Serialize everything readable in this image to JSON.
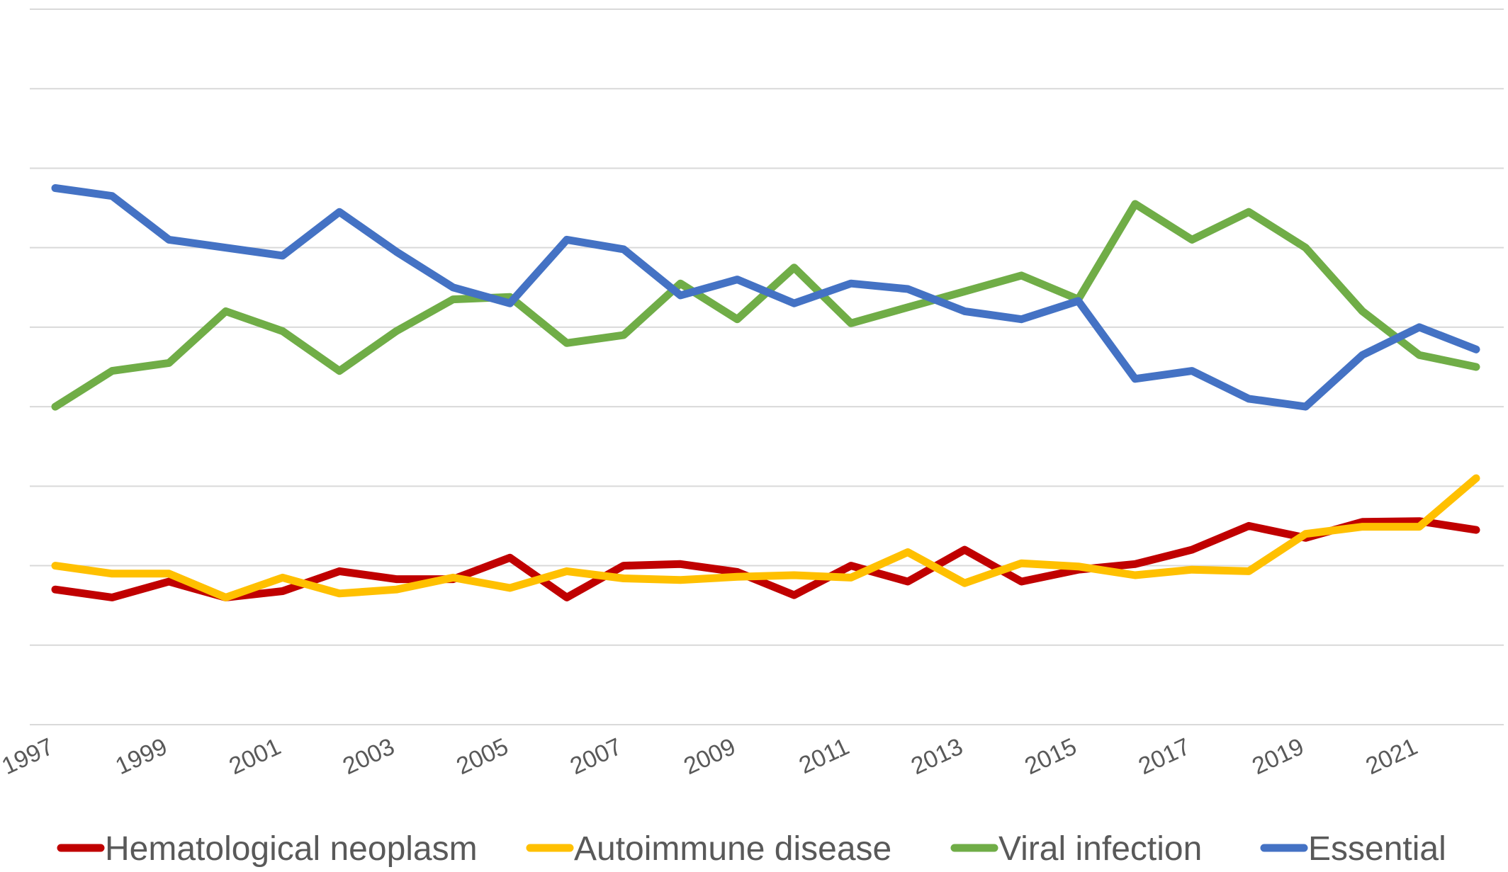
{
  "chart_data": {
    "type": "line",
    "x": [
      1997,
      1998,
      1999,
      2000,
      2001,
      2002,
      2003,
      2004,
      2005,
      2006,
      2007,
      2008,
      2009,
      2010,
      2011,
      2012,
      2013,
      2014,
      2015,
      2016,
      2017,
      2018,
      2019,
      2020,
      2021,
      2022
    ],
    "x_tick_labels": [
      "1997",
      "1999",
      "2001",
      "2003",
      "2005",
      "2007",
      "2009",
      "2011",
      "2013",
      "2015",
      "2017",
      "2019",
      "2021"
    ],
    "ylim": [
      0,
      9
    ],
    "y_gridlines": 9,
    "grid": true,
    "legend_position": "bottom",
    "series": [
      {
        "name": "Hematological neoplasm",
        "color": "#c00000",
        "values": [
          1.7,
          1.6,
          1.8,
          1.6,
          1.68,
          1.93,
          1.83,
          1.83,
          2.1,
          1.6,
          2.0,
          2.02,
          1.92,
          1.63,
          2.0,
          1.8,
          2.2,
          1.8,
          1.95,
          2.02,
          2.2,
          2.5,
          2.35,
          2.55,
          2.56,
          2.45
        ]
      },
      {
        "name": "Autoimmune disease",
        "color": "#ffc000",
        "values": [
          2.0,
          1.9,
          1.9,
          1.6,
          1.85,
          1.65,
          1.7,
          1.85,
          1.72,
          1.93,
          1.84,
          1.82,
          1.86,
          1.88,
          1.85,
          2.17,
          1.78,
          2.03,
          1.99,
          1.88,
          1.95,
          1.93,
          2.4,
          2.49,
          2.49,
          3.1
        ]
      },
      {
        "name": "Viral infection",
        "color": "#70ad47",
        "values": [
          4.0,
          4.45,
          4.55,
          5.2,
          4.95,
          4.45,
          4.95,
          5.35,
          5.38,
          4.8,
          4.9,
          5.55,
          5.1,
          5.75,
          5.05,
          5.25,
          5.45,
          5.65,
          5.35,
          6.55,
          6.1,
          6.45,
          6.0,
          5.2,
          4.65,
          4.5
        ]
      },
      {
        "name": "Essential",
        "color": "#4472c4",
        "values": [
          6.75,
          6.65,
          6.1,
          6.0,
          5.9,
          6.45,
          5.95,
          5.5,
          5.3,
          6.1,
          5.98,
          5.4,
          5.6,
          5.3,
          5.55,
          5.48,
          5.2,
          5.1,
          5.33,
          4.35,
          4.45,
          4.1,
          4.0,
          4.65,
          5.0,
          4.72
        ]
      }
    ]
  }
}
